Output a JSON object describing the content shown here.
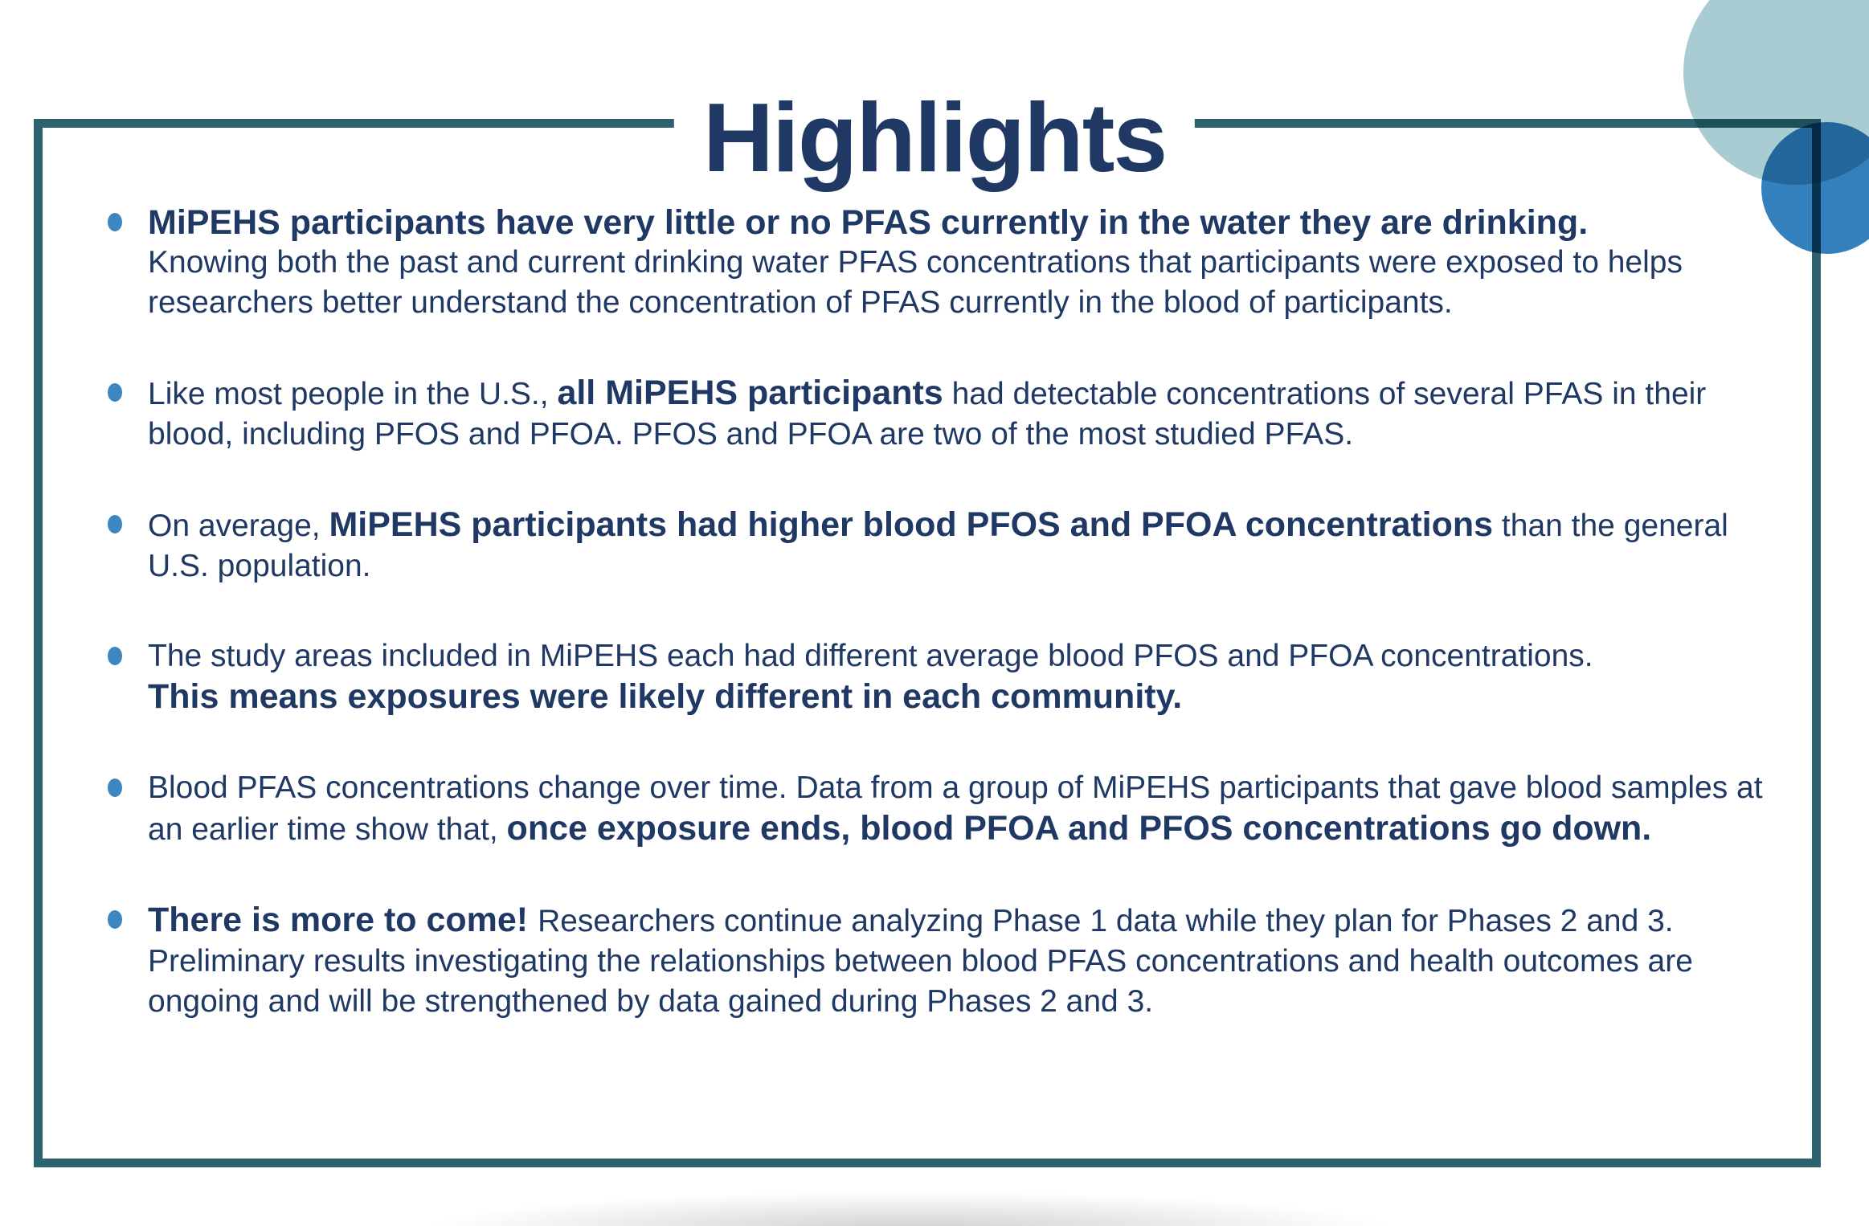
{
  "page": {
    "title": "Highlights"
  },
  "colors": {
    "navy": "#1F3864",
    "teal": "#2D636E",
    "bullet_blue": "#3D86C0",
    "circle_light": "#A9CBD2",
    "circle_dark": "#3380BC"
  },
  "bullets": [
    {
      "segments": [
        {
          "text": "MiPEHS participants have very little or no PFAS currently in the water they are drinking.",
          "bold": true,
          "block": true
        },
        {
          "text": "Knowing both the past and current drinking water PFAS concentrations that participants were exposed to helps researchers better understand the concentration of PFAS currently in the blood of participants.",
          "bold": false
        }
      ]
    },
    {
      "segments": [
        {
          "text": "Like most people in the U.S., ",
          "bold": false
        },
        {
          "text": "all MiPEHS participants",
          "bold": true
        },
        {
          "text": " had detectable concentrations of several PFAS in their blood, including PFOS and PFOA. PFOS and PFOA are two of the most studied PFAS.",
          "bold": false
        }
      ]
    },
    {
      "segments": [
        {
          "text": "On average, ",
          "bold": false
        },
        {
          "text": "MiPEHS participants had higher blood PFOS and PFOA concentrations",
          "bold": true
        },
        {
          "text": " than the general U.S. population.",
          "bold": false
        }
      ]
    },
    {
      "segments": [
        {
          "text": "The study areas included in MiPEHS each had different average blood PFOS and PFOA concentrations.",
          "bold": false,
          "block": true
        },
        {
          "text": "This means exposures were likely different in each community.",
          "bold": true
        }
      ]
    },
    {
      "segments": [
        {
          "text": "Blood PFAS concentrations change over time. Data from a group of MiPEHS participants that gave blood samples at an earlier time show that, ",
          "bold": false
        },
        {
          "text": "once exposure ends, blood PFOA and PFOS concentrations go down.",
          "bold": true
        }
      ]
    },
    {
      "segments": [
        {
          "text": "There is more to come! ",
          "bold": true
        },
        {
          "text": "Researchers continue analyzing Phase 1 data while they plan for Phases 2 and 3. Preliminary results investigating the relationships between blood PFAS concentrations and health outcomes are ongoing and will be strengthened by data gained during Phases 2 and 3.",
          "bold": false
        }
      ]
    }
  ]
}
